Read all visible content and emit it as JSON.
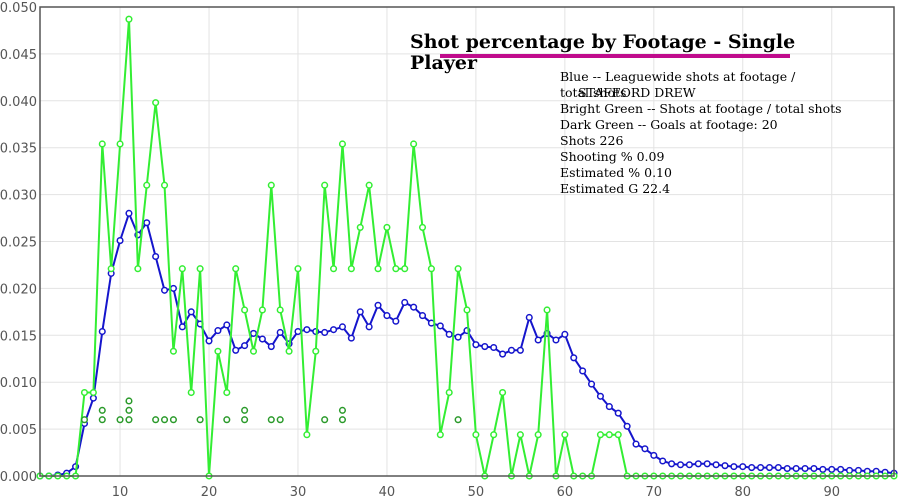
{
  "chart_data": {
    "type": "line",
    "title": "Shot percentage by Footage - Single Player",
    "player": "STAFFORD DREW",
    "annotations": [
      "Blue -- Leaguewide shots at footage / total shots",
      "Bright Green -- Shots at footage / total shots",
      "Dark Green -- Goals at footage: 20",
      "Shots 226",
      "Shooting % 0.09",
      "Estimated % 0.10",
      "Estimated G 22.4"
    ],
    "xlim": [
      1,
      97
    ],
    "ylim": [
      0,
      0.05
    ],
    "x_ticks": [
      10,
      20,
      30,
      40,
      50,
      60,
      70,
      80,
      90
    ],
    "y_ticks": [
      "0.000",
      "0.005",
      "0.010",
      "0.015",
      "0.020",
      "0.025",
      "0.030",
      "0.035",
      "0.040",
      "0.045",
      "0.050"
    ],
    "colors": {
      "league": "#1515cc",
      "player": "#33ee33",
      "goals": "#2a9a2a",
      "title_underline": "#c00b8c",
      "frame": "#555555"
    },
    "series": [
      {
        "name": "Leaguewide shots at footage / total shots",
        "x": [
          1,
          2,
          3,
          4,
          5,
          6,
          7,
          8,
          9,
          10,
          11,
          12,
          13,
          14,
          15,
          16,
          17,
          18,
          19,
          20,
          21,
          22,
          23,
          24,
          25,
          26,
          27,
          28,
          29,
          30,
          31,
          32,
          33,
          34,
          35,
          36,
          37,
          38,
          39,
          40,
          41,
          42,
          43,
          44,
          45,
          46,
          47,
          48,
          49,
          50,
          51,
          52,
          53,
          54,
          55,
          56,
          57,
          58,
          59,
          60,
          61,
          62,
          63,
          64,
          65,
          66,
          67,
          68,
          69,
          70,
          71,
          72,
          73,
          74,
          75,
          76,
          77,
          78,
          79,
          80,
          81,
          82,
          83,
          84,
          85,
          86,
          87,
          88,
          89,
          90,
          91,
          92,
          93,
          94,
          95,
          96,
          97
        ],
        "values": [
          0,
          0,
          0.0001,
          0.0003,
          0.001,
          0.0056,
          0.0083,
          0.0154,
          0.0216,
          0.0251,
          0.028,
          0.0257,
          0.027,
          0.0234,
          0.0198,
          0.02,
          0.0159,
          0.0175,
          0.0162,
          0.0144,
          0.0155,
          0.0161,
          0.0134,
          0.0139,
          0.0152,
          0.0146,
          0.0138,
          0.0153,
          0.0141,
          0.0154,
          0.0156,
          0.0154,
          0.0153,
          0.0156,
          0.0159,
          0.0147,
          0.0175,
          0.0159,
          0.0182,
          0.0171,
          0.0165,
          0.0185,
          0.018,
          0.0171,
          0.0163,
          0.016,
          0.0151,
          0.0148,
          0.0155,
          0.014,
          0.0138,
          0.0137,
          0.013,
          0.0134,
          0.0134,
          0.0169,
          0.0145,
          0.0152,
          0.0145,
          0.0151,
          0.0126,
          0.0112,
          0.0098,
          0.0085,
          0.0074,
          0.0067,
          0.0053,
          0.0034,
          0.0029,
          0.0022,
          0.0016,
          0.0013,
          0.0012,
          0.0012,
          0.0013,
          0.0013,
          0.0012,
          0.0011,
          0.001,
          0.001,
          0.0009,
          0.0009,
          0.0009,
          0.0009,
          0.0008,
          0.0008,
          0.0008,
          0.0008,
          0.0007,
          0.0007,
          0.0007,
          0.0006,
          0.0006,
          0.0005,
          0.0005,
          0.0004,
          0.0003
        ],
        "point_every": 1
      },
      {
        "name": "Shots at footage / total shots",
        "x": [
          1,
          2,
          3,
          4,
          5,
          6,
          7,
          8,
          9,
          10,
          11,
          12,
          13,
          14,
          15,
          16,
          17,
          18,
          19,
          20,
          21,
          22,
          23,
          24,
          25,
          26,
          27,
          28,
          29,
          30,
          31,
          32,
          33,
          34,
          35,
          36,
          37,
          38,
          39,
          40,
          41,
          42,
          43,
          44,
          45,
          46,
          47,
          48,
          49,
          50,
          51,
          52,
          53,
          54,
          55,
          56,
          57,
          58,
          59,
          60,
          61,
          62,
          63,
          64,
          65,
          66,
          67,
          68,
          69,
          70,
          71,
          72,
          73,
          74,
          75,
          76,
          77,
          78,
          79,
          80,
          81,
          82,
          83,
          84,
          85,
          86,
          87,
          88,
          89,
          90,
          91,
          92,
          93,
          94,
          95,
          96,
          97
        ],
        "values": [
          0,
          0,
          0,
          0,
          0,
          0.0089,
          0.0089,
          0.0354,
          0.0221,
          0.0354,
          0.0487,
          0.0221,
          0.031,
          0.0398,
          0.031,
          0.0133,
          0.0221,
          0.0089,
          0.0221,
          0,
          0.0133,
          0.0089,
          0.0221,
          0.0177,
          0.0133,
          0.0177,
          0.031,
          0.0177,
          0.0133,
          0.0221,
          0.0044,
          0.0133,
          0.031,
          0.0221,
          0.0354,
          0.0221,
          0.0265,
          0.031,
          0.0221,
          0.0265,
          0.0221,
          0.0221,
          0.0354,
          0.0265,
          0.0221,
          0.0044,
          0.0089,
          0.0221,
          0.0177,
          0.0044,
          0,
          0.0044,
          0.0089,
          0,
          0.0044,
          0,
          0.0044,
          0.0177,
          0,
          0.0044,
          0,
          0,
          0,
          0.0044,
          0.0044,
          0.0044,
          0,
          0,
          0,
          0,
          0,
          0,
          0,
          0,
          0,
          0,
          0,
          0,
          0,
          0,
          0,
          0,
          0,
          0,
          0,
          0,
          0,
          0,
          0,
          0,
          0,
          0,
          0,
          0,
          0,
          0,
          0
        ],
        "point_every": 1
      },
      {
        "name": "Goals at footage",
        "type": "scatter",
        "x": [
          6,
          8,
          8,
          10,
          11,
          11,
          11,
          14,
          15,
          16,
          19,
          22,
          24,
          24,
          27,
          28,
          33,
          35,
          35,
          48
        ],
        "values": [
          0.006,
          0.006,
          0.007,
          0.006,
          0.006,
          0.007,
          0.008,
          0.006,
          0.006,
          0.006,
          0.006,
          0.006,
          0.006,
          0.007,
          0.006,
          0.006,
          0.006,
          0.006,
          0.007,
          0.006
        ]
      }
    ]
  }
}
